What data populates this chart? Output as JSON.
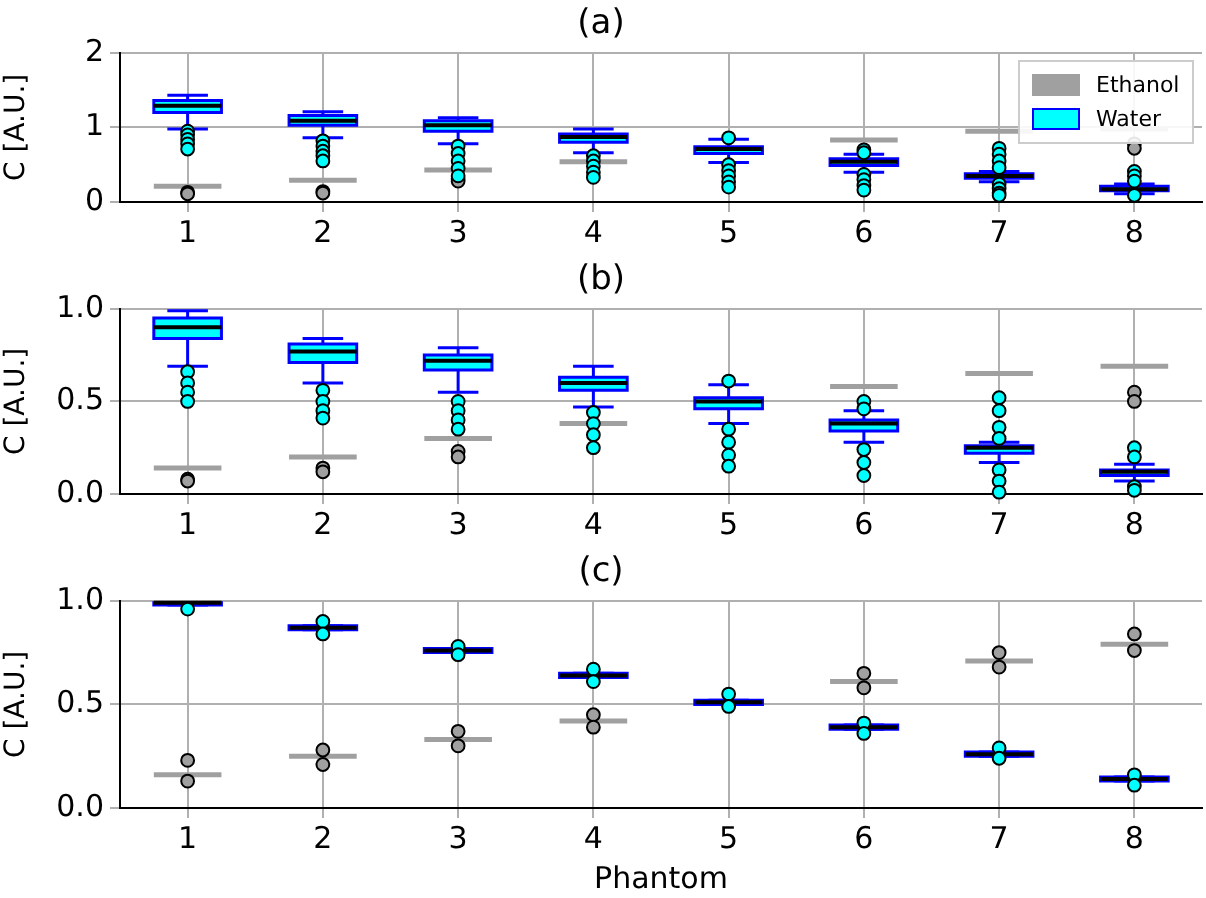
{
  "chart_data": [
    {
      "type": "box",
      "title": "(a)",
      "ylabel": "C [A.U.]",
      "categories": [
        "1",
        "2",
        "3",
        "4",
        "5",
        "6",
        "7",
        "8"
      ],
      "ylim": [
        0,
        2
      ],
      "yticks": [
        0,
        1,
        2
      ],
      "grid": true,
      "legend": "top right",
      "series": [
        {
          "name": "Ethanol",
          "color": "#a0a0a0",
          "boxes": [
            {
              "low": 0.21,
              "q1": 0.21,
              "median": 0.21,
              "q3": 0.21,
              "high": 0.21,
              "outliers": [
                0.13,
                0.11
              ]
            },
            {
              "low": 0.29,
              "q1": 0.29,
              "median": 0.29,
              "q3": 0.29,
              "high": 0.29,
              "outliers": [
                0.14,
                0.12
              ]
            },
            {
              "low": 0.43,
              "q1": 0.43,
              "median": 0.43,
              "q3": 0.43,
              "high": 0.43,
              "outliers": [
                0.31,
                0.28
              ]
            },
            {
              "low": 0.54,
              "q1": 0.54,
              "median": 0.54,
              "q3": 0.54,
              "high": 0.54
            },
            null,
            {
              "low": 0.83,
              "q1": 0.83,
              "median": 0.83,
              "q3": 0.83,
              "high": 0.83
            },
            {
              "low": 0.95,
              "q1": 0.95,
              "median": 0.95,
              "q3": 0.95,
              "high": 0.95
            },
            {
              "low": 0.98,
              "q1": 0.98,
              "median": 0.98,
              "q3": 0.98,
              "high": 0.98,
              "outliers": [
                0.78,
                0.72
              ]
            }
          ]
        },
        {
          "name": "Water",
          "color": "#00ffff",
          "boxes": [
            {
              "low": 0.98,
              "q1": 1.2,
              "median": 1.29,
              "q3": 1.36,
              "high": 1.43,
              "outliers": [
                0.95,
                0.9,
                0.84,
                0.78,
                0.71
              ]
            },
            {
              "low": 0.86,
              "q1": 1.03,
              "median": 1.09,
              "q3": 1.16,
              "high": 1.21,
              "outliers": [
                0.82,
                0.75,
                0.68,
                0.62,
                0.55
              ]
            },
            {
              "low": 0.78,
              "q1": 0.95,
              "median": 1.03,
              "q3": 1.09,
              "high": 1.13,
              "outliers": [
                0.75,
                0.65,
                0.55,
                0.45,
                0.35
              ]
            },
            {
              "low": 0.66,
              "q1": 0.8,
              "median": 0.87,
              "q3": 0.91,
              "high": 0.98,
              "outliers": [
                0.62,
                0.55,
                0.48,
                0.4,
                0.33
              ]
            },
            {
              "low": 0.53,
              "q1": 0.65,
              "median": 0.71,
              "q3": 0.74,
              "high": 0.84,
              "outliers": [
                0.86,
                0.5,
                0.42,
                0.35,
                0.27,
                0.2
              ]
            },
            {
              "low": 0.4,
              "q1": 0.49,
              "median": 0.54,
              "q3": 0.58,
              "high": 0.64,
              "outliers": [
                0.7,
                0.66,
                0.37,
                0.3,
                0.22,
                0.16
              ]
            },
            {
              "low": 0.27,
              "q1": 0.32,
              "median": 0.35,
              "q3": 0.38,
              "high": 0.41,
              "outliers": [
                0.72,
                0.64,
                0.55,
                0.46,
                0.24,
                0.18,
                0.12,
                0.09
              ]
            },
            {
              "low": 0.11,
              "q1": 0.15,
              "median": 0.17,
              "q3": 0.21,
              "high": 0.24,
              "outliers": [
                0.41,
                0.35,
                0.28,
                0.09
              ]
            }
          ]
        }
      ]
    },
    {
      "type": "box",
      "title": "(b)",
      "ylabel": "C [A.U.]",
      "categories": [
        "1",
        "2",
        "3",
        "4",
        "5",
        "6",
        "7",
        "8"
      ],
      "ylim": [
        0,
        1
      ],
      "yticks": [
        {
          "value": 0,
          "label": "0.0"
        },
        {
          "value": 0.5,
          "label": "0.5"
        },
        {
          "value": 1,
          "label": "1.0"
        }
      ],
      "grid": true,
      "series": [
        {
          "color": "#a0a0a0",
          "boxes": [
            {
              "low": 0.14,
              "q1": 0.14,
              "median": 0.14,
              "q3": 0.14,
              "high": 0.14,
              "outliers": [
                0.08,
                0.07
              ]
            },
            {
              "low": 0.2,
              "q1": 0.2,
              "median": 0.2,
              "q3": 0.2,
              "high": 0.2,
              "outliers": [
                0.14,
                0.12
              ]
            },
            {
              "low": 0.3,
              "q1": 0.3,
              "median": 0.3,
              "q3": 0.3,
              "high": 0.3,
              "outliers": [
                0.23,
                0.2
              ]
            },
            {
              "low": 0.38,
              "q1": 0.38,
              "median": 0.38,
              "q3": 0.38,
              "high": 0.38
            },
            null,
            {
              "low": 0.58,
              "q1": 0.58,
              "median": 0.58,
              "q3": 0.58,
              "high": 0.58
            },
            {
              "low": 0.65,
              "q1": 0.65,
              "median": 0.65,
              "q3": 0.65,
              "high": 0.65
            },
            {
              "low": 0.69,
              "q1": 0.69,
              "median": 0.69,
              "q3": 0.69,
              "high": 0.69,
              "outliers": [
                0.55,
                0.5
              ]
            }
          ]
        },
        {
          "color": "#00ffff",
          "boxes": [
            {
              "low": 0.69,
              "q1": 0.84,
              "median": 0.9,
              "q3": 0.95,
              "high": 0.99,
              "outliers": [
                0.66,
                0.6,
                0.55,
                0.5
              ]
            },
            {
              "low": 0.6,
              "q1": 0.71,
              "median": 0.77,
              "q3": 0.81,
              "high": 0.84,
              "outliers": [
                0.56,
                0.5,
                0.45,
                0.41
              ]
            },
            {
              "low": 0.55,
              "q1": 0.67,
              "median": 0.72,
              "q3": 0.75,
              "high": 0.79,
              "outliers": [
                0.5,
                0.45,
                0.4,
                0.35
              ]
            },
            {
              "low": 0.47,
              "q1": 0.56,
              "median": 0.6,
              "q3": 0.63,
              "high": 0.69,
              "outliers": [
                0.44,
                0.38,
                0.32,
                0.25
              ]
            },
            {
              "low": 0.38,
              "q1": 0.46,
              "median": 0.5,
              "q3": 0.52,
              "high": 0.59,
              "outliers": [
                0.61,
                0.35,
                0.28,
                0.21,
                0.15
              ]
            },
            {
              "low": 0.28,
              "q1": 0.34,
              "median": 0.38,
              "q3": 0.4,
              "high": 0.45,
              "outliers": [
                0.5,
                0.46,
                0.24,
                0.17,
                0.1
              ]
            },
            {
              "low": 0.17,
              "q1": 0.22,
              "median": 0.25,
              "q3": 0.26,
              "high": 0.28,
              "outliers": [
                0.52,
                0.45,
                0.36,
                0.3,
                0.13,
                0.07,
                0.01
              ]
            },
            {
              "low": 0.07,
              "q1": 0.1,
              "median": 0.12,
              "q3": 0.13,
              "high": 0.16,
              "outliers": [
                0.25,
                0.2,
                0.04,
                0.02
              ]
            }
          ]
        }
      ]
    },
    {
      "type": "box",
      "title": "(c)",
      "xlabel": "Phantom",
      "ylabel": "C [A.U.]",
      "categories": [
        "1",
        "2",
        "3",
        "4",
        "5",
        "6",
        "7",
        "8"
      ],
      "ylim": [
        0,
        1
      ],
      "yticks": [
        {
          "value": 0,
          "label": "0.0"
        },
        {
          "value": 0.5,
          "label": "0.5"
        },
        {
          "value": 1,
          "label": "1.0"
        }
      ],
      "grid": true,
      "series": [
        {
          "color": "#a0a0a0",
          "boxes": [
            {
              "low": 0.16,
              "q1": 0.16,
              "median": 0.16,
              "q3": 0.16,
              "high": 0.16,
              "outliers": [
                0.23,
                0.13
              ]
            },
            {
              "low": 0.25,
              "q1": 0.25,
              "median": 0.25,
              "q3": 0.25,
              "high": 0.25,
              "outliers": [
                0.28,
                0.21
              ]
            },
            {
              "low": 0.33,
              "q1": 0.33,
              "median": 0.33,
              "q3": 0.33,
              "high": 0.33,
              "outliers": [
                0.37,
                0.3
              ]
            },
            {
              "low": 0.42,
              "q1": 0.42,
              "median": 0.42,
              "q3": 0.42,
              "high": 0.42,
              "outliers": [
                0.45,
                0.39
              ]
            },
            null,
            {
              "low": 0.61,
              "q1": 0.61,
              "median": 0.61,
              "q3": 0.61,
              "high": 0.61,
              "outliers": [
                0.65,
                0.58
              ]
            },
            {
              "low": 0.71,
              "q1": 0.71,
              "median": 0.71,
              "q3": 0.71,
              "high": 0.71,
              "outliers": [
                0.75,
                0.68
              ]
            },
            {
              "low": 0.79,
              "q1": 0.79,
              "median": 0.79,
              "q3": 0.79,
              "high": 0.79,
              "outliers": [
                0.84,
                0.76
              ]
            }
          ]
        },
        {
          "color": "#00ffff",
          "boxes": [
            {
              "low": 0.98,
              "q1": 0.98,
              "median": 0.99,
              "q3": 0.99,
              "high": 0.99,
              "outliers": [
                0.96
              ]
            },
            {
              "low": 0.86,
              "q1": 0.86,
              "median": 0.87,
              "q3": 0.88,
              "high": 0.88,
              "outliers": [
                0.9,
                0.84
              ]
            },
            {
              "low": 0.75,
              "q1": 0.75,
              "median": 0.76,
              "q3": 0.77,
              "high": 0.77,
              "outliers": [
                0.78,
                0.74
              ]
            },
            {
              "low": 0.63,
              "q1": 0.63,
              "median": 0.64,
              "q3": 0.65,
              "high": 0.65,
              "outliers": [
                0.67,
                0.61
              ]
            },
            {
              "low": 0.5,
              "q1": 0.5,
              "median": 0.51,
              "q3": 0.52,
              "high": 0.52,
              "outliers": [
                0.55,
                0.49
              ]
            },
            {
              "low": 0.38,
              "q1": 0.38,
              "median": 0.39,
              "q3": 0.4,
              "high": 0.4,
              "outliers": [
                0.41,
                0.36
              ]
            },
            {
              "low": 0.25,
              "q1": 0.25,
              "median": 0.26,
              "q3": 0.27,
              "high": 0.27,
              "outliers": [
                0.29,
                0.24
              ]
            },
            {
              "low": 0.13,
              "q1": 0.13,
              "median": 0.14,
              "q3": 0.15,
              "high": 0.15,
              "outliers": [
                0.16,
                0.11
              ]
            }
          ]
        }
      ]
    }
  ]
}
